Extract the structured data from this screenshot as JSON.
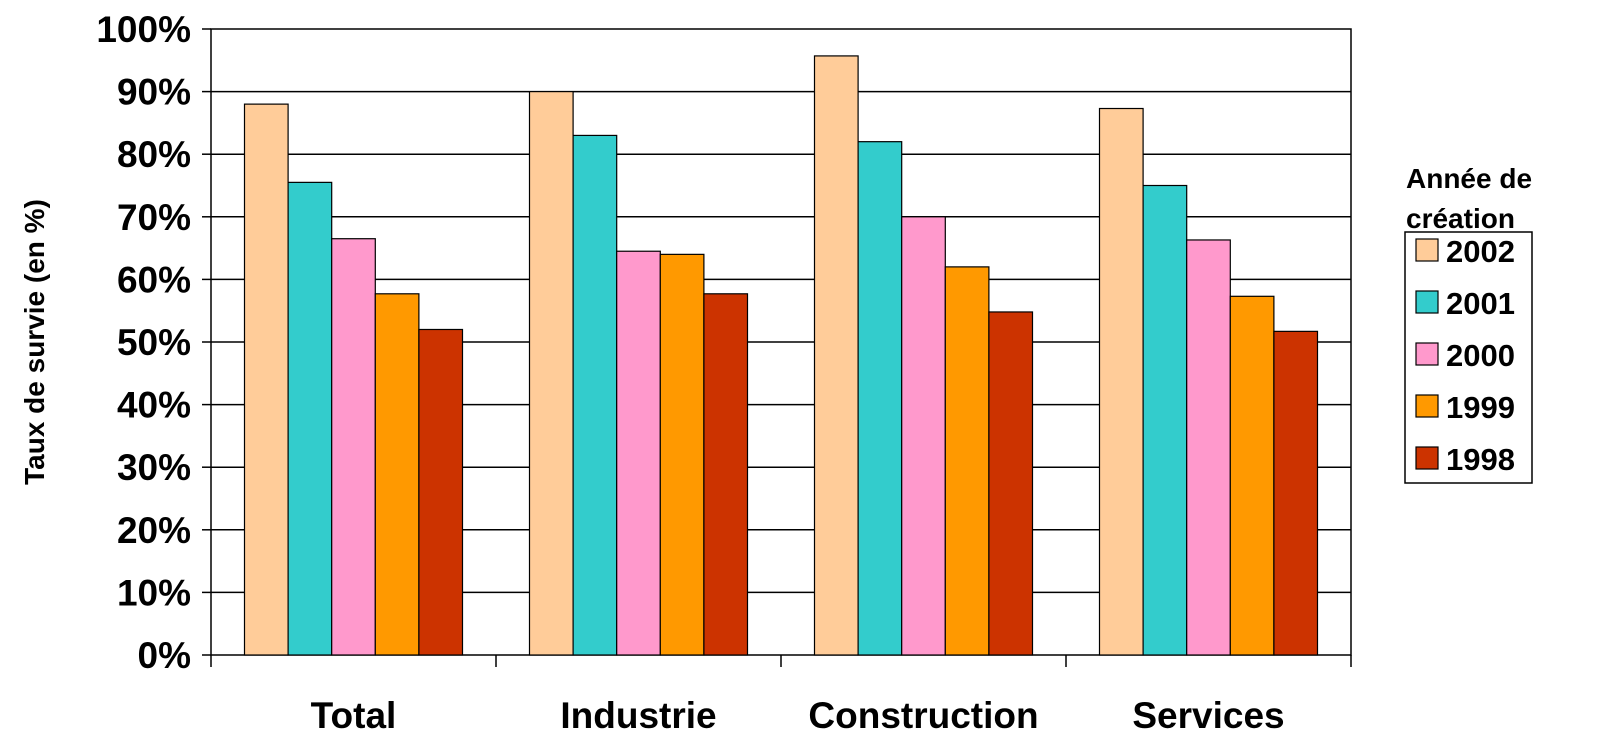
{
  "chart_data": {
    "type": "bar",
    "title": "",
    "xlabel": "",
    "ylabel": "Taux de survie (en %)",
    "ylim": [
      0,
      100
    ],
    "yticks": [
      "0%",
      "10%",
      "20%",
      "30%",
      "40%",
      "50%",
      "60%",
      "70%",
      "80%",
      "90%",
      "100%"
    ],
    "grid": true,
    "legend_position": "right",
    "legend_title": [
      "Année de",
      "création"
    ],
    "categories": [
      "Total",
      "Industrie",
      "Construction",
      "Services"
    ],
    "series": [
      {
        "name": "2002",
        "color": "#FFCC99",
        "values": [
          88,
          90,
          95.7,
          87.3
        ]
      },
      {
        "name": "2001",
        "color": "#33CCCC",
        "values": [
          75.5,
          83,
          82,
          75
        ]
      },
      {
        "name": "2000",
        "color": "#FF99CC",
        "values": [
          66.5,
          64.5,
          70,
          66.3
        ]
      },
      {
        "name": "1999",
        "color": "#FF9900",
        "values": [
          57.7,
          64,
          62,
          57.3
        ]
      },
      {
        "name": "1998",
        "color": "#CC3300",
        "values": [
          52,
          57.7,
          54.8,
          51.7
        ]
      }
    ]
  }
}
